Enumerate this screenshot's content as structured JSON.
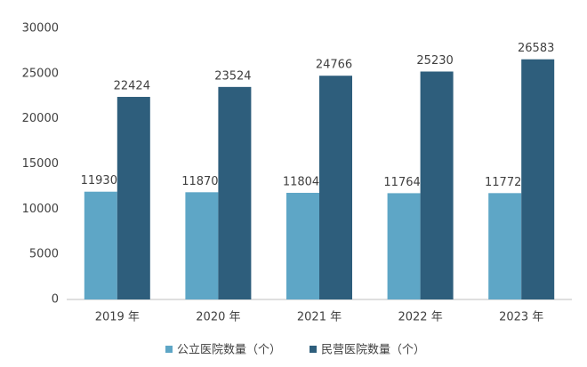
{
  "chart_data": {
    "type": "bar",
    "categories": [
      "2019 年",
      "2020 年",
      "2021 年",
      "2022 年",
      "2023 年"
    ],
    "series": [
      {
        "name": "公立医院数量（个）",
        "color": "#5ea6c6",
        "values": [
          11930,
          11870,
          11804,
          11764,
          11772
        ]
      },
      {
        "name": "民营医院数量（个）",
        "color": "#2e5e7c",
        "values": [
          22424,
          23524,
          24766,
          25230,
          26583
        ]
      }
    ],
    "ylim": [
      0,
      30000
    ],
    "yticks": [
      0,
      5000,
      10000,
      15000,
      20000,
      25000,
      30000
    ],
    "grid": false,
    "legend": "bottom"
  }
}
